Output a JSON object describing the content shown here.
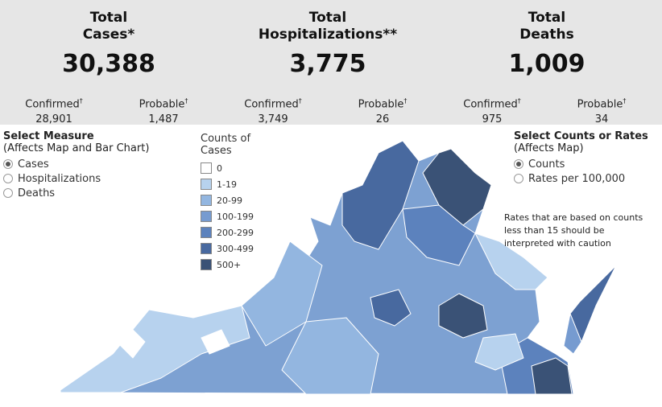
{
  "summary": [
    {
      "title": [
        "Total",
        "Cases*"
      ],
      "value": "30,388",
      "confirmed_label": "Confirmed",
      "confirmed_mark": "†",
      "confirmed": "28,901",
      "probable_label": "Probable",
      "probable_mark": "†",
      "probable": "1,487"
    },
    {
      "title": [
        "Total",
        "Hospitalizations**"
      ],
      "value": "3,775",
      "confirmed_label": "Confirmed",
      "confirmed_mark": "†",
      "confirmed": "3,749",
      "probable_label": "Probable",
      "probable_mark": "†",
      "probable": "26"
    },
    {
      "title": [
        "Total",
        "Deaths"
      ],
      "value": "1,009",
      "confirmed_label": "Confirmed",
      "confirmed_mark": "†",
      "confirmed": "975",
      "probable_label": "Probable",
      "probable_mark": "†",
      "probable": "34"
    }
  ],
  "measure": {
    "title": "Select Measure",
    "subtitle": "(Affects Map and Bar Chart)",
    "options": [
      "Cases",
      "Hospitalizations",
      "Deaths"
    ],
    "selected": 0
  },
  "legend": {
    "title": [
      "Counts of",
      "Cases"
    ],
    "items": [
      {
        "label": "0",
        "color": "#ffffff"
      },
      {
        "label": "1-19",
        "color": "#b7d2ee"
      },
      {
        "label": "20-99",
        "color": "#93b6e0"
      },
      {
        "label": "100-199",
        "color": "#769bd0"
      },
      {
        "label": "200-299",
        "color": "#5c82bd"
      },
      {
        "label": "300-499",
        "color": "#48699f"
      },
      {
        "label": "500+",
        "color": "#3a5276"
      }
    ]
  },
  "scale": {
    "title": "Select Counts or Rates",
    "subtitle": "(Affects Map)",
    "options": [
      "Counts",
      "Rates per 100,000"
    ],
    "selected": 0
  },
  "note": "Rates that are based on counts less than 15 should be interpreted with caution"
}
